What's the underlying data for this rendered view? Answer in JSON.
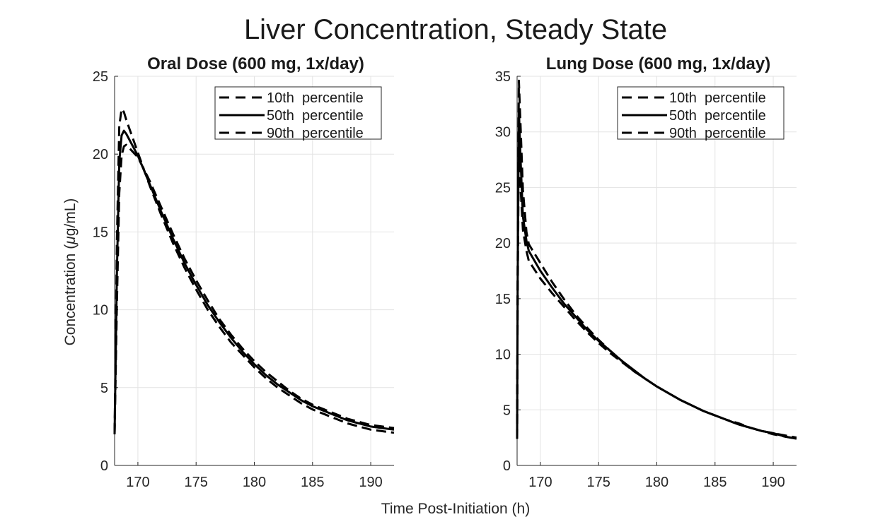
{
  "figure": {
    "suptitle": "Liver Concentration, Steady State",
    "xlabel": "Time Post-Initiation (h)",
    "ylabel_prefix": "Concentration  (",
    "ylabel_mu": "μ",
    "ylabel_suffix": "g/mL)"
  },
  "chart_data": [
    {
      "type": "line",
      "title": "Oral Dose (600 mg, 1x/day)",
      "xlabel": "Time Post-Initiation (h)",
      "ylabel": "Concentration  (μg/mL)",
      "xlim": [
        168,
        192
      ],
      "ylim": [
        0,
        25
      ],
      "xticks": [
        170,
        175,
        180,
        185,
        190
      ],
      "yticks": [
        0,
        5,
        10,
        15,
        20,
        25
      ],
      "grid": true,
      "legend": "top-right",
      "series": [
        {
          "name": "10th  percentile",
          "style": "dashed",
          "x": [
            168,
            168.2,
            168.4,
            168.6,
            168.8,
            169,
            170,
            171,
            172,
            173,
            174,
            175,
            176,
            177,
            178,
            179,
            180,
            181,
            182,
            183,
            184,
            185,
            186,
            187,
            188,
            189,
            190,
            191,
            192
          ],
          "y": [
            2.1,
            14.5,
            21.8,
            22.9,
            22.7,
            22.2,
            20.1,
            18.0,
            16.1,
            14.3,
            12.7,
            11.3,
            10.0,
            8.9,
            7.9,
            7.1,
            6.3,
            5.6,
            5.0,
            4.5,
            4.0,
            3.6,
            3.3,
            3.0,
            2.7,
            2.5,
            2.3,
            2.2,
            2.1
          ]
        },
        {
          "name": "50th  percentile",
          "style": "solid",
          "x": [
            168,
            168.2,
            168.4,
            168.6,
            168.8,
            169,
            170,
            171,
            172,
            173,
            174,
            175,
            176,
            177,
            178,
            179,
            180,
            181,
            182,
            183,
            184,
            185,
            186,
            187,
            188,
            189,
            190,
            191,
            192
          ],
          "y": [
            2.0,
            12.5,
            19.5,
            21.2,
            21.5,
            21.3,
            19.9,
            18.1,
            16.3,
            14.6,
            13.0,
            11.6,
            10.3,
            9.2,
            8.2,
            7.3,
            6.5,
            5.8,
            5.2,
            4.7,
            4.2,
            3.8,
            3.5,
            3.2,
            2.9,
            2.7,
            2.5,
            2.4,
            2.3
          ]
        },
        {
          "name": "90th  percentile",
          "style": "dashed",
          "x": [
            168,
            168.2,
            168.4,
            168.6,
            168.8,
            169,
            170,
            171,
            172,
            173,
            174,
            175,
            176,
            177,
            178,
            179,
            180,
            181,
            182,
            183,
            184,
            185,
            186,
            187,
            188,
            189,
            190,
            191,
            192
          ],
          "y": [
            2.0,
            10.5,
            17.5,
            19.9,
            20.5,
            20.6,
            19.8,
            18.3,
            16.6,
            14.9,
            13.3,
            11.9,
            10.6,
            9.4,
            8.4,
            7.5,
            6.7,
            6.0,
            5.4,
            4.8,
            4.3,
            3.9,
            3.6,
            3.3,
            3.0,
            2.8,
            2.6,
            2.5,
            2.4
          ]
        }
      ]
    },
    {
      "type": "line",
      "title": "Lung Dose (600 mg, 1x/day)",
      "xlabel": "Time Post-Initiation (h)",
      "ylabel": "",
      "xlim": [
        168,
        192
      ],
      "ylim": [
        0,
        35
      ],
      "xticks": [
        170,
        175,
        180,
        185,
        190
      ],
      "yticks": [
        0,
        5,
        10,
        15,
        20,
        25,
        30,
        35
      ],
      "grid": true,
      "legend": "top-right",
      "series": [
        {
          "name": "10th  percentile",
          "style": "dashed",
          "x": [
            168,
            168.05,
            168.15,
            168.3,
            168.5,
            168.8,
            169,
            170,
            171,
            172,
            173,
            174,
            175,
            176,
            177,
            178,
            179,
            180,
            181,
            182,
            183,
            184,
            185,
            186,
            187,
            188,
            189,
            190,
            191,
            192
          ],
          "y": [
            2.4,
            18.0,
            34.6,
            30.5,
            24.8,
            21.0,
            19.9,
            18.2,
            16.5,
            15.0,
            13.6,
            12.4,
            11.3,
            10.3,
            9.4,
            8.5,
            7.8,
            7.1,
            6.5,
            5.9,
            5.4,
            4.9,
            4.5,
            4.1,
            3.8,
            3.4,
            3.1,
            2.9,
            2.7,
            2.5
          ]
        },
        {
          "name": "50th  percentile",
          "style": "solid",
          "x": [
            168,
            168.05,
            168.15,
            168.3,
            168.5,
            168.8,
            169,
            170,
            171,
            172,
            173,
            174,
            175,
            176,
            177,
            178,
            179,
            180,
            181,
            182,
            183,
            184,
            185,
            186,
            187,
            188,
            189,
            190,
            191,
            192
          ],
          "y": [
            2.4,
            16.5,
            32.0,
            27.5,
            22.4,
            20.2,
            19.3,
            17.5,
            16.0,
            14.6,
            13.4,
            12.2,
            11.2,
            10.3,
            9.4,
            8.6,
            7.8,
            7.1,
            6.5,
            5.9,
            5.4,
            4.9,
            4.5,
            4.1,
            3.7,
            3.4,
            3.1,
            2.9,
            2.6,
            2.4
          ]
        },
        {
          "name": "90th  percentile",
          "style": "dashed",
          "x": [
            168,
            168.05,
            168.15,
            168.3,
            168.5,
            168.8,
            169,
            170,
            171,
            172,
            173,
            174,
            175,
            176,
            177,
            178,
            179,
            180,
            181,
            182,
            183,
            184,
            185,
            186,
            187,
            188,
            189,
            190,
            191,
            192
          ],
          "y": [
            2.4,
            15.0,
            29.5,
            25.0,
            21.2,
            19.3,
            18.4,
            16.8,
            15.5,
            14.3,
            13.1,
            12.0,
            11.0,
            10.1,
            9.3,
            8.5,
            7.8,
            7.1,
            6.5,
            5.9,
            5.4,
            4.9,
            4.5,
            4.1,
            3.7,
            3.4,
            3.1,
            2.8,
            2.6,
            2.4
          ]
        }
      ]
    }
  ]
}
